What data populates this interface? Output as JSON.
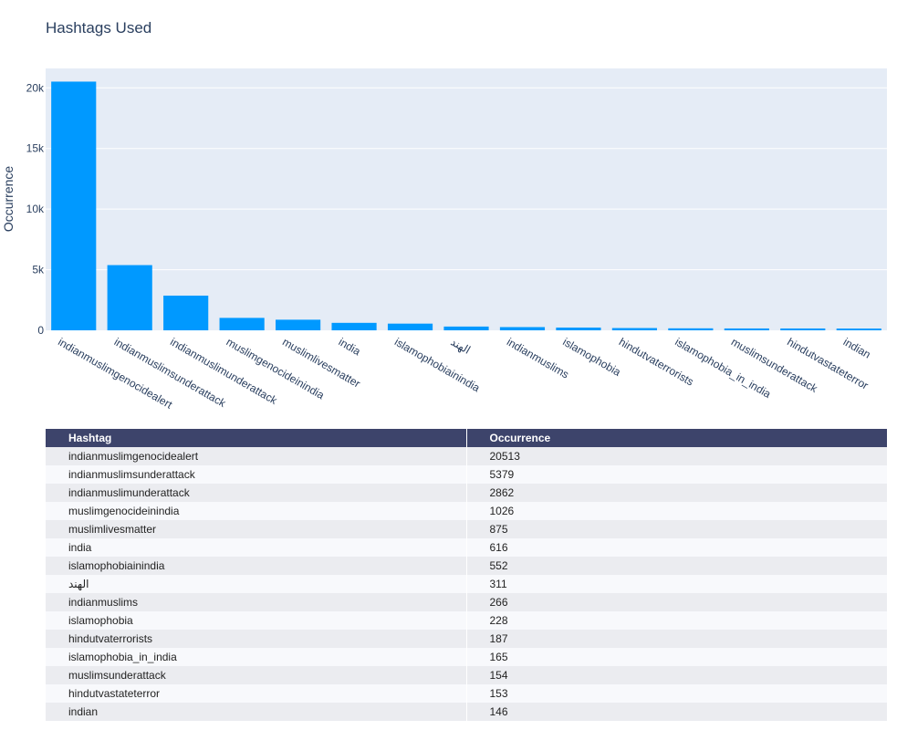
{
  "chart_data": {
    "type": "bar",
    "title": "Hashtags Used",
    "xlabel": "",
    "ylabel": "Occurrence",
    "ylim": [
      0,
      21600
    ],
    "yticks": [
      0,
      5000,
      10000,
      15000,
      20000
    ],
    "ytick_labels": [
      "0",
      "5k",
      "10k",
      "15k",
      "20k"
    ],
    "grid": true,
    "bar_color": "#0099ff",
    "categories": [
      "indianmuslimgenocidealert",
      "indianmuslimsunderattack",
      "indianmuslimunderattack",
      "muslimgenocideinindia",
      "muslimlivesmatter",
      "india",
      "islamophobiainindia",
      "الهند",
      "indianmuslims",
      "islamophobia",
      "hindutvaterrorists",
      "islamophobia_in_india",
      "muslimsunderattack",
      "hindutvastateterror",
      "indian"
    ],
    "values": [
      20513,
      5379,
      2862,
      1026,
      875,
      616,
      552,
      311,
      266,
      228,
      187,
      165,
      154,
      153,
      146
    ]
  },
  "table": {
    "header": [
      "Hashtag",
      "Occurrence"
    ],
    "header_color": "#3d446b",
    "rows": [
      [
        "indianmuslimgenocidealert",
        "20513"
      ],
      [
        "indianmuslimsunderattack",
        "5379"
      ],
      [
        "indianmuslimunderattack",
        "2862"
      ],
      [
        "muslimgenocideinindia",
        "1026"
      ],
      [
        "muslimlivesmatter",
        "875"
      ],
      [
        "india",
        "616"
      ],
      [
        "islamophobiainindia",
        "552"
      ],
      [
        "الهند",
        "311"
      ],
      [
        "indianmuslims",
        "266"
      ],
      [
        "islamophobia",
        "228"
      ],
      [
        "hindutvaterrorists",
        "187"
      ],
      [
        "islamophobia_in_india",
        "165"
      ],
      [
        "muslimsunderattack",
        "154"
      ],
      [
        "hindutvastateterror",
        "153"
      ],
      [
        "indian",
        "146"
      ]
    ]
  }
}
